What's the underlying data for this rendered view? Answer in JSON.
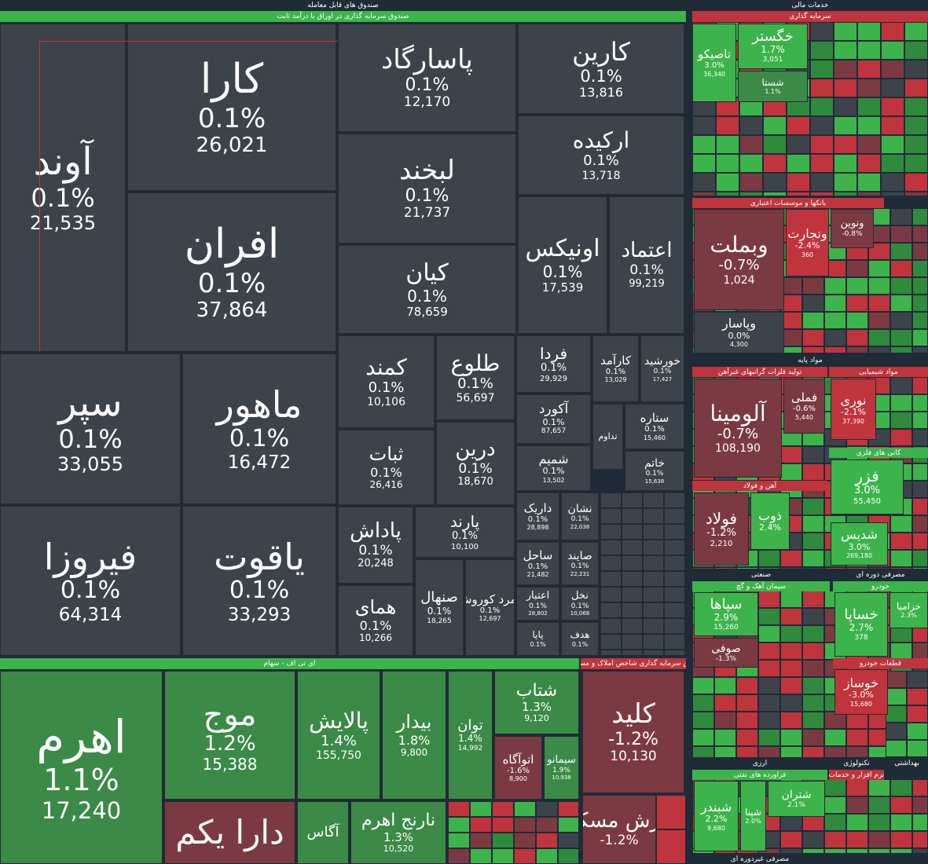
{
  "headers": [
    "صندوق های قابل معامله",
    "صندوق سرمایه گذاری در اوراق با درآمد ثابت",
    "ای تی اف - سهام",
    "صندوق سرمایه گذاری شاخص املاک و مستغلات",
    "خدمات مالی",
    "سرمایه گذاری",
    "بانکها و موسسات اعتباری",
    "مواد پایه",
    "تولید فلزات گرانبهای غیرآهن",
    "مواد شیمیایی",
    "کانی های فلزی",
    "آهن و فولاد",
    "صنعتی",
    "سیمان آهک و گچ",
    "مصرفی دوره ای",
    "خودرو",
    "قطعات خودرو",
    "ارزی",
    "فراورده های نفتی",
    "تکنولوژی",
    "نرم افزار و خدمات",
    "بهداشتی",
    "مصرفی غیردوره ای"
  ],
  "tiles": [
    {
      "name": "آوند",
      "change": "0.1%",
      "value": "21,535"
    },
    {
      "name": "کارا",
      "change": "0.1%",
      "value": "26,021"
    },
    {
      "name": "افران",
      "change": "0.1%",
      "value": "37,864"
    },
    {
      "name": "پاسارگاد",
      "change": "0.1%",
      "value": "12,170"
    },
    {
      "name": "کارین",
      "change": "0.1%",
      "value": "13,816"
    },
    {
      "name": "ارکیده",
      "change": "0.1%",
      "value": "13,718"
    },
    {
      "name": "لبخند",
      "change": "0.1%",
      "value": "21,737"
    },
    {
      "name": "کیان",
      "change": "0.1%",
      "value": "78,659"
    },
    {
      "name": "اونیکس",
      "change": "0.1%",
      "value": "17,539"
    },
    {
      "name": "اعتماد",
      "change": "0.1%",
      "value": "99,219"
    },
    {
      "name": "سپر",
      "change": "0.1%",
      "value": "33,055"
    },
    {
      "name": "ماهور",
      "change": "0.1%",
      "value": "16,472"
    },
    {
      "name": "فیروزا",
      "change": "0.1%",
      "value": "64,314"
    },
    {
      "name": "یاقوت",
      "change": "0.1%",
      "value": "33,293"
    },
    {
      "name": "کمند",
      "change": "0.1%",
      "value": "10,106"
    },
    {
      "name": "طلوع",
      "change": "0.1%",
      "value": "56,697"
    },
    {
      "name": "ثبات",
      "change": "0.1%",
      "value": "26,416"
    },
    {
      "name": "درین",
      "change": "0.1%",
      "value": "18,670"
    },
    {
      "name": "فردا",
      "change": "0.1%",
      "value": "29,929"
    },
    {
      "name": "کارآمد",
      "change": "0.1%",
      "value": "13,029"
    },
    {
      "name": "خورشید",
      "change": "0.1%",
      "value": "17,427"
    },
    {
      "name": "آکورد",
      "change": "0.1%",
      "value": "87,657"
    },
    {
      "name": "تداوم"
    },
    {
      "name": "ستاره",
      "change": "0.1%",
      "value": "15,460"
    },
    {
      "name": "شمیم",
      "change": "0.1%",
      "value": "13,502"
    },
    {
      "name": "خاتم",
      "change": "0.1%",
      "value": "15,638"
    },
    {
      "name": "پاداش",
      "change": "0.1%",
      "value": "20,248"
    },
    {
      "name": "پارند",
      "change": "0.1%",
      "value": "10,100"
    },
    {
      "name": "همای",
      "change": "0.1%",
      "value": "10,266"
    },
    {
      "name": "صنهال",
      "change": "0.1%",
      "value": "18,265"
    },
    {
      "name": "زمرد کوروش",
      "change": "0.1%",
      "value": "12,697"
    },
    {
      "name": "داریک",
      "change": "0.1%",
      "value": "28,898"
    },
    {
      "name": "نشان",
      "change": "0.1%",
      "value": "22,038"
    },
    {
      "name": "ساحل",
      "change": "0.1%",
      "value": "21,482"
    },
    {
      "name": "صایند",
      "change": "0.1%",
      "value": "22,231"
    },
    {
      "name": "اعتبار",
      "change": "0.1%",
      "value": "28,802"
    },
    {
      "name": "نخل",
      "change": "0.1%",
      "value": "10,068"
    },
    {
      "name": "پایا",
      "change": "0.1%"
    },
    {
      "name": "هدف",
      "change": "0.1%"
    },
    {
      "name": "اهرم",
      "change": "1.1%",
      "value": "17,240"
    },
    {
      "name": "موج",
      "change": "1.2%",
      "value": "15,388"
    },
    {
      "name": "دارا یکم"
    },
    {
      "name": "پالایش",
      "change": "1.4%",
      "value": "155,750"
    },
    {
      "name": "بیدار",
      "change": "1.8%",
      "value": "9,800"
    },
    {
      "name": "توان",
      "change": "1.4%",
      "value": "14,992"
    },
    {
      "name": "شتاب",
      "change": "1.3%",
      "value": "9,120"
    },
    {
      "name": "اتوآگاه",
      "change": "-1.6%",
      "value": "8,900"
    },
    {
      "name": "سیمانو",
      "change": "1.9%",
      "value": "10,938"
    },
    {
      "name": "آگاس"
    },
    {
      "name": "نارنج اهرم",
      "change": "1.3%",
      "value": "10,520"
    },
    {
      "name": "کلید",
      "change": "-1.2%",
      "value": "10,130"
    },
    {
      "name": "ارزش مسکن",
      "change": "-1.2%"
    },
    {
      "name": "تاصیکو",
      "change": "3.0%",
      "value": "36,340"
    },
    {
      "name": "خگستر",
      "change": "1.7%",
      "value": "3,051"
    },
    {
      "name": "شستا",
      "change": "1.1%"
    },
    {
      "name": "وبملت",
      "change": "-0.7%",
      "value": "1,024"
    },
    {
      "name": "وپاسار",
      "change": "0.0%",
      "value": "4,300"
    },
    {
      "name": "وتجارت",
      "change": "-2.4%",
      "value": "360"
    },
    {
      "name": "ونوین",
      "change": "-0.8%"
    },
    {
      "name": "آلومینا",
      "change": "-0.7%",
      "value": "108,190"
    },
    {
      "name": "فملی",
      "change": "-0.6%",
      "value": "5,440"
    },
    {
      "name": "نوری",
      "change": "-2.1%",
      "value": "37,390"
    },
    {
      "name": "فزر",
      "change": "3.0%",
      "value": "55,450"
    },
    {
      "name": "فولاد",
      "change": "-1.2%",
      "value": "2,210"
    },
    {
      "name": "ذوب",
      "change": "2.4%"
    },
    {
      "name": "شدیس",
      "change": "3.0%",
      "value": "269,180"
    },
    {
      "name": "سپاها",
      "change": "2.9%",
      "value": "15,260"
    },
    {
      "name": "صوفی",
      "change": "-1.3%"
    },
    {
      "name": "خساپا",
      "change": "2.7%",
      "value": "378"
    },
    {
      "name": "خزامیا",
      "change": "2.3%"
    },
    {
      "name": "خوساز",
      "change": "-3.0%",
      "value": "15,680"
    },
    {
      "name": "شبندر",
      "change": "2.2%",
      "value": "9,680"
    },
    {
      "name": "شپنا",
      "change": "2.0%"
    },
    {
      "name": "شتران",
      "change": "2.1%"
    }
  ]
}
